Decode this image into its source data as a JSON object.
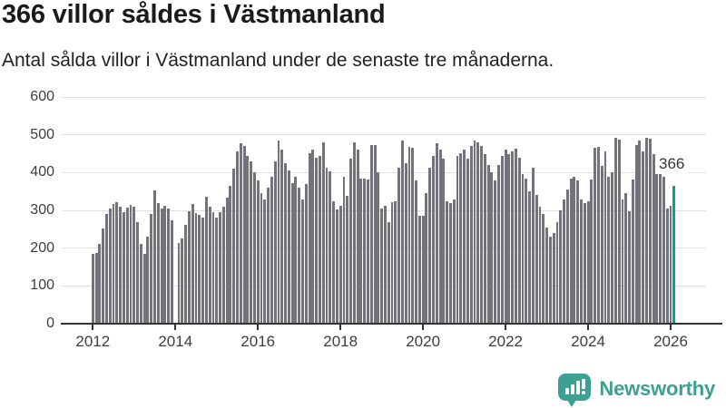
{
  "header": {
    "title": "366 villor såldes i Västmanland",
    "subtitle": "Antal sålda villor i Västmanland under de senaste tre månaderna."
  },
  "chart_data": {
    "type": "bar",
    "title": "366 villor såldes i Västmanland",
    "subtitle": "Antal sålda villor i Västmanland under de senaste tre månaderna.",
    "frequency": "monthly",
    "x_start": "2012-01",
    "x_end": "2026-02",
    "ylim": [
      0,
      600
    ],
    "yticks": [
      0,
      100,
      200,
      300,
      400,
      500,
      600
    ],
    "grid": "horizontal",
    "legend": "none",
    "xticks": [
      {
        "label": "2012",
        "month_index": 0
      },
      {
        "label": "2014",
        "month_index": 24
      },
      {
        "label": "2016",
        "month_index": 48
      },
      {
        "label": "2018",
        "month_index": 72
      },
      {
        "label": "2020",
        "month_index": 96
      },
      {
        "label": "2022",
        "month_index": 120
      },
      {
        "label": "2024",
        "month_index": 144
      },
      {
        "label": "2026",
        "month_index": 168
      }
    ],
    "values": [
      185,
      188,
      212,
      253,
      291,
      305,
      318,
      321,
      310,
      296,
      308,
      315,
      309,
      270,
      212,
      185,
      230,
      290,
      353,
      319,
      306,
      311,
      306,
      273,
      null,
      213,
      225,
      261,
      297,
      317,
      293,
      287,
      282,
      337,
      310,
      295,
      280,
      295,
      310,
      333,
      365,
      410,
      455,
      478,
      470,
      445,
      430,
      402,
      380,
      345,
      330,
      360,
      390,
      430,
      484,
      460,
      425,
      405,
      371,
      390,
      360,
      329,
      369,
      451,
      461,
      439,
      445,
      481,
      413,
      403,
      325,
      302,
      313,
      389,
      338,
      437,
      481,
      461,
      385,
      385,
      381,
      473,
      473,
      401,
      305,
      313,
      269,
      321,
      325,
      413,
      485,
      425,
      469,
      465,
      380,
      285,
      285,
      345,
      413,
      445,
      478,
      460,
      437,
      325,
      320,
      330,
      445,
      452,
      460,
      437,
      470,
      485,
      480,
      470,
      450,
      420,
      400,
      380,
      420,
      445,
      462,
      450,
      455,
      463,
      440,
      397,
      385,
      350,
      414,
      340,
      310,
      290,
      255,
      231,
      240,
      270,
      300,
      330,
      355,
      385,
      390,
      380,
      329,
      319,
      325,
      381,
      465,
      469,
      417,
      455,
      390,
      401,
      492,
      487,
      330,
      345,
      297,
      381,
      473,
      485,
      457,
      492,
      489,
      449,
      417,
      441,
      390,
      305,
      311,
      366
    ],
    "highlight": {
      "index": 169,
      "value": 366,
      "label": "366"
    },
    "colors": {
      "bar": "#73737b",
      "highlight": "#00a0a5",
      "gridline": "#e0e0e0",
      "axis": "#333333",
      "tick_text": "#3d3d3d"
    }
  },
  "annotation": {
    "text": "366"
  },
  "footer": {
    "brand": "Newsworthy",
    "logo_color": "#3ca092",
    "logo_icon": "speech-bubble-bar-chart-icon"
  }
}
